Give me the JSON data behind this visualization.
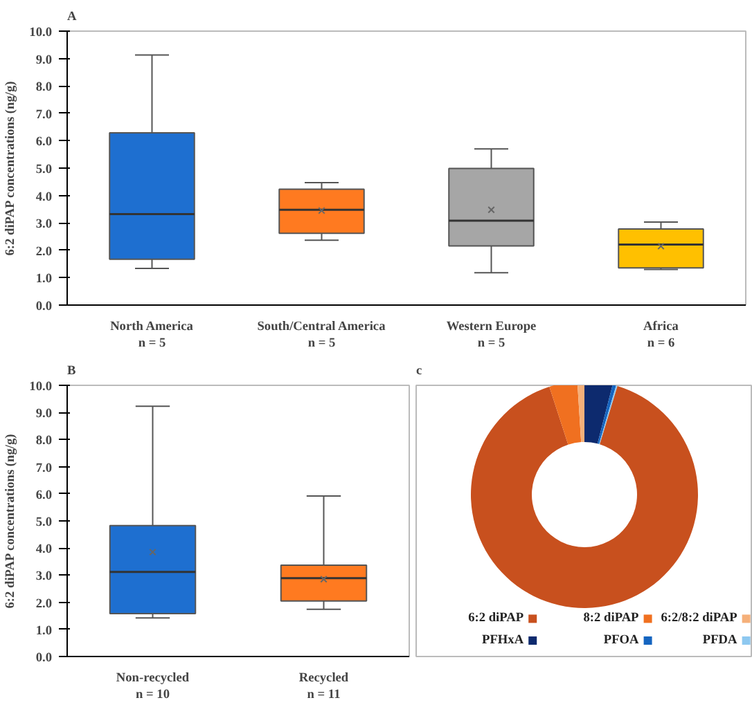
{
  "chart_data": [
    {
      "type": "box",
      "title": "A",
      "ylabel": "6:2 diPAP concentrations (ng/g)",
      "categories": [
        "North America\nn = 5",
        "South/Central America\nn = 5",
        "Western Europe\nn = 5",
        "Africa\nn = 6"
      ],
      "colors": [
        "#1e6fd0",
        "#ff7a20",
        "#a6a6a6",
        "#ffc000"
      ],
      "boxes": [
        {
          "low": 1.34,
          "q1": 1.67,
          "median": 3.32,
          "q3": 6.29,
          "high": 9.13
        },
        {
          "low": 2.37,
          "q1": 2.62,
          "median": 3.48,
          "q3": 4.23,
          "high": 4.47,
          "mean": 3.45
        },
        {
          "low": 1.18,
          "q1": 2.16,
          "median": 3.08,
          "q3": 4.99,
          "high": 5.7,
          "mean": 3.48
        },
        {
          "low": 1.3,
          "q1": 1.36,
          "median": 2.21,
          "q3": 2.78,
          "high": 3.03,
          "mean": 2.15
        }
      ],
      "ylim": [
        0,
        10
      ],
      "yticks": [
        {
          "value": 0,
          "label": "0.0"
        },
        {
          "value": 1,
          "label": "1.0"
        },
        {
          "value": 2,
          "label": "2.0"
        },
        {
          "value": 3,
          "label": "3.0"
        },
        {
          "value": 4,
          "label": "4.0"
        },
        {
          "value": 5,
          "label": "5.0"
        },
        {
          "value": 6,
          "label": "6.0"
        },
        {
          "value": 7,
          "label": "7.0"
        },
        {
          "value": 8,
          "label": "8.0"
        },
        {
          "value": 9,
          "label": "9.0"
        },
        {
          "value": 10,
          "label": "10.0"
        }
      ],
      "grid": false
    },
    {
      "type": "box",
      "title": "B",
      "ylabel": "6:2 diPAP concentrations (ng/g)",
      "categories": [
        "Non-recycled\nn = 10",
        "Recycled\nn = 11"
      ],
      "colors": [
        "#1e6fd0",
        "#ff7a20"
      ],
      "boxes": [
        {
          "low": 1.42,
          "q1": 1.58,
          "median": 3.12,
          "q3": 4.83,
          "high": 9.23,
          "mean": 3.85
        },
        {
          "low": 1.74,
          "q1": 2.05,
          "median": 2.89,
          "q3": 3.37,
          "high": 5.92,
          "mean": 2.85
        }
      ],
      "ylim": [
        0,
        10
      ],
      "yticks": [
        {
          "value": 0,
          "label": "0.0"
        },
        {
          "value": 1,
          "label": "1.0"
        },
        {
          "value": 2,
          "label": "2.0"
        },
        {
          "value": 3,
          "label": "3.0"
        },
        {
          "value": 4,
          "label": "4.0"
        },
        {
          "value": 5,
          "label": "5.0"
        },
        {
          "value": 6,
          "label": "6.0"
        },
        {
          "value": 7,
          "label": "7.0"
        },
        {
          "value": 8,
          "label": "8.0"
        },
        {
          "value": 9,
          "label": "9.0"
        },
        {
          "value": 10,
          "label": "10.0"
        }
      ],
      "grid": false
    },
    {
      "type": "donut",
      "title": "c",
      "categories": [
        "6:2 diPAP",
        "8:2 diPAP",
        "6:2/8:2 diPAP",
        "PFHxA",
        "PFOA",
        "PFDA"
      ],
      "values": [
        90.3,
        4.0,
        1.0,
        4.0,
        0.5,
        0.2
      ],
      "colors": [
        "#c8501e",
        "#f07020",
        "#f5b07a",
        "#0d2a6e",
        "#1565c0",
        "#8ec8f0"
      ],
      "legend": "bottom"
    }
  ]
}
